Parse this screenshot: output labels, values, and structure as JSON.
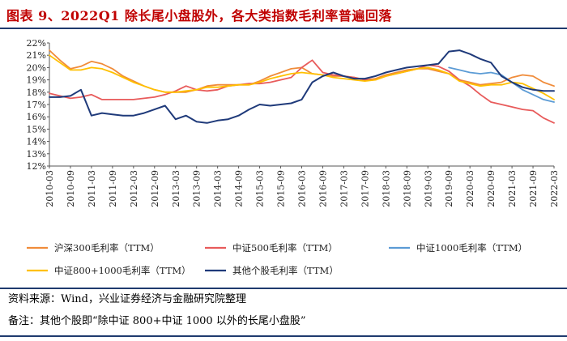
{
  "title": "图表 9、2022Q1 除长尾小盘股外，各大类指数毛利率普遍回落",
  "source": "资料来源：Wind，兴业证券经济与金融研究院整理",
  "note": "备注：其他个股即“除中证 800+中证 1000 以外的长尾小盘股”",
  "chart_data": {
    "type": "line",
    "title": "图表 9、2022Q1 除长尾小盘股外，各大类指数毛利率普遍回落",
    "xlabel": "",
    "ylabel": "",
    "ylim": [
      12,
      22
    ],
    "yticks": [
      "12%",
      "13%",
      "14%",
      "15%",
      "16%",
      "17%",
      "18%",
      "19%",
      "20%",
      "21%",
      "22%"
    ],
    "x": [
      "2010-03",
      "2010-06",
      "2010-09",
      "2010-12",
      "2011-03",
      "2011-06",
      "2011-09",
      "2011-12",
      "2012-03",
      "2012-06",
      "2012-09",
      "2012-12",
      "2013-03",
      "2013-06",
      "2013-09",
      "2013-12",
      "2014-03",
      "2014-06",
      "2014-09",
      "2014-12",
      "2015-03",
      "2015-06",
      "2015-09",
      "2015-12",
      "2016-03",
      "2016-06",
      "2016-09",
      "2016-12",
      "2017-03",
      "2017-06",
      "2017-09",
      "2017-12",
      "2018-03",
      "2018-06",
      "2018-09",
      "2018-12",
      "2019-03",
      "2019-06",
      "2019-09",
      "2019-12",
      "2020-03",
      "2020-06",
      "2020-09",
      "2020-12",
      "2021-03",
      "2021-06",
      "2021-09",
      "2021-12",
      "2022-03"
    ],
    "xticks": [
      "2010-03",
      "2010-09",
      "2011-03",
      "2011-09",
      "2012-03",
      "2012-09",
      "2013-03",
      "2013-09",
      "2014-03",
      "2014-09",
      "2015-03",
      "2015-09",
      "2016-03",
      "2016-09",
      "2017-03",
      "2017-09",
      "2018-03",
      "2018-09",
      "2019-03",
      "2019-09",
      "2020-03",
      "2020-09",
      "2021-03",
      "2021-09",
      "2022-03"
    ],
    "series": [
      {
        "name": "沪深300毛利率（TTM）",
        "color": "#f08c3a",
        "values": [
          21.4,
          20.6,
          19.9,
          20.1,
          20.5,
          20.3,
          19.9,
          19.3,
          18.9,
          18.5,
          18.2,
          18.0,
          18.0,
          18.0,
          18.2,
          18.5,
          18.6,
          18.6,
          18.6,
          18.6,
          18.9,
          19.3,
          19.6,
          19.9,
          20.0,
          19.5,
          19.4,
          19.3,
          19.3,
          19.2,
          19.0,
          19.1,
          19.4,
          19.6,
          19.8,
          19.9,
          19.9,
          19.7,
          19.5,
          19.0,
          18.8,
          18.6,
          18.7,
          18.8,
          19.2,
          19.4,
          19.3,
          18.8,
          18.5
        ]
      },
      {
        "name": "中证500毛利率（TTM）",
        "color": "#e85b5b",
        "values": [
          17.9,
          17.7,
          17.5,
          17.6,
          17.8,
          17.4,
          17.4,
          17.4,
          17.4,
          17.5,
          17.6,
          17.8,
          18.1,
          18.5,
          18.2,
          18.1,
          18.2,
          18.5,
          18.6,
          18.7,
          18.7,
          18.8,
          19.0,
          19.2,
          20.0,
          20.6,
          19.6,
          19.4,
          19.3,
          19.2,
          19.0,
          19.0,
          19.3,
          19.5,
          19.7,
          19.9,
          20.2,
          20.1,
          19.7,
          19.0,
          18.5,
          17.8,
          17.2,
          17.0,
          16.8,
          16.6,
          16.5,
          15.9,
          15.5
        ]
      },
      {
        "name": "中证1000毛利率（TTM）",
        "color": "#5b9bd5",
        "values": [
          null,
          null,
          null,
          null,
          null,
          null,
          null,
          null,
          null,
          null,
          null,
          null,
          null,
          null,
          null,
          null,
          null,
          null,
          null,
          null,
          null,
          null,
          null,
          null,
          null,
          null,
          null,
          null,
          null,
          null,
          null,
          null,
          null,
          null,
          null,
          null,
          null,
          null,
          20.0,
          19.8,
          19.6,
          19.5,
          19.6,
          19.4,
          18.8,
          18.2,
          17.8,
          17.4,
          17.2
        ]
      },
      {
        "name": "中证800+1000毛利率（TTM）",
        "color": "#ffc000",
        "values": [
          21.0,
          20.4,
          19.8,
          19.8,
          20.0,
          19.9,
          19.6,
          19.2,
          18.8,
          18.5,
          18.2,
          18.0,
          18.0,
          18.1,
          18.2,
          18.4,
          18.4,
          18.5,
          18.6,
          18.6,
          18.8,
          19.1,
          19.3,
          19.5,
          19.6,
          19.5,
          19.4,
          19.2,
          19.1,
          19.0,
          18.9,
          19.0,
          19.3,
          19.5,
          19.7,
          19.9,
          20.0,
          19.8,
          19.5,
          18.9,
          18.7,
          18.5,
          18.6,
          18.6,
          18.8,
          18.7,
          18.3,
          17.9,
          17.4
        ]
      },
      {
        "name": "其他个股毛利率（TTM）",
        "color": "#1f3a7a",
        "values": [
          17.6,
          17.6,
          17.7,
          18.2,
          16.1,
          16.3,
          16.2,
          16.1,
          16.1,
          16.3,
          16.6,
          16.9,
          15.8,
          16.1,
          15.6,
          15.5,
          15.7,
          15.8,
          16.1,
          16.6,
          17.0,
          16.9,
          17.0,
          17.1,
          17.4,
          18.8,
          19.3,
          19.6,
          19.3,
          19.1,
          19.1,
          19.3,
          19.6,
          19.8,
          20.0,
          20.1,
          20.2,
          20.3,
          21.3,
          21.4,
          21.1,
          20.7,
          20.4,
          19.3,
          18.8,
          18.4,
          18.2,
          18.1,
          18.1
        ]
      }
    ],
    "legend_position": "bottom"
  }
}
